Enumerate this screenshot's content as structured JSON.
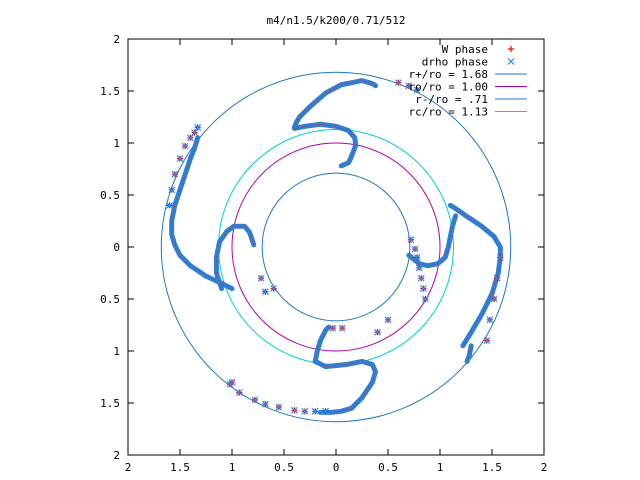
{
  "chart_data": {
    "type": "scatter",
    "title": "m4/n1.5/k200/0.71/512",
    "xlabel": "",
    "ylabel": "",
    "xlim": [
      -2,
      2
    ],
    "ylim": [
      -2,
      2
    ],
    "x_tick_values": [
      -2,
      -1.5,
      -1,
      -0.5,
      0,
      0.5,
      1,
      1.5,
      2
    ],
    "x_tick_labels": [
      "2",
      "1.5",
      "1",
      "0.5",
      "0",
      "0.5",
      "1",
      "1.5",
      "2"
    ],
    "y_tick_values": [
      2,
      1.5,
      1,
      0.5,
      0,
      -0.5,
      -1,
      -1.5,
      -2
    ],
    "y_tick_labels": [
      "2",
      "1.5",
      "1",
      "0.5",
      "0",
      "0.5",
      "1",
      "1.5",
      "2"
    ],
    "grid": false,
    "legend_position": "top-right",
    "series": [
      {
        "name": "W phase",
        "kind": "points",
        "marker": "plus",
        "color": "#ff0000",
        "x": [
          -1.6,
          -1.58,
          -1.55,
          -1.5,
          -1.45,
          -1.4,
          -1.36,
          -1.33,
          -1.02,
          -0.93,
          -0.78,
          -0.68,
          -0.55,
          -0.4,
          -0.3,
          -0.2,
          -0.1,
          0.72,
          0.76,
          0.78,
          0.8,
          0.82,
          0.84,
          0.86,
          0.5,
          0.4,
          0.78,
          0.7,
          0.6,
          -0.72,
          -0.6,
          -0.68,
          -0.03,
          0.06,
          1.58,
          1.55,
          1.52,
          1.48,
          1.45,
          -1.0
        ],
        "y": [
          0.4,
          0.55,
          0.7,
          0.85,
          0.97,
          1.05,
          1.1,
          1.15,
          -1.32,
          -1.4,
          -1.47,
          -1.51,
          -1.54,
          -1.57,
          -1.58,
          -1.58,
          -1.58,
          0.07,
          -0.02,
          -0.1,
          -0.2,
          -0.3,
          -0.4,
          -0.5,
          -0.7,
          -0.82,
          1.51,
          1.55,
          1.58,
          -0.3,
          -0.4,
          -0.43,
          -0.78,
          -0.78,
          -0.1,
          -0.3,
          -0.5,
          -0.7,
          -0.9,
          -1.3
        ]
      },
      {
        "name": "drho phase",
        "kind": "points",
        "marker": "cross",
        "color": "#1e90ff",
        "x": [
          -1.6,
          -1.58,
          -1.55,
          -1.5,
          -1.45,
          -1.4,
          -1.36,
          -1.33,
          -1.02,
          -0.93,
          -0.78,
          -0.68,
          -0.55,
          -0.4,
          -0.3,
          -0.2,
          -0.1,
          0.72,
          0.76,
          0.78,
          0.8,
          0.82,
          0.84,
          0.86,
          0.5,
          0.4,
          0.78,
          0.7,
          0.6,
          -0.72,
          -0.6,
          -0.68,
          -0.03,
          0.06,
          1.58,
          1.55,
          1.52,
          1.48,
          1.45,
          -1.0
        ],
        "y": [
          0.4,
          0.55,
          0.7,
          0.85,
          0.97,
          1.05,
          1.1,
          1.15,
          -1.32,
          -1.4,
          -1.47,
          -1.51,
          -1.54,
          -1.57,
          -1.58,
          -1.58,
          -1.58,
          0.07,
          -0.02,
          -0.1,
          -0.2,
          -0.3,
          -0.4,
          -0.5,
          -0.7,
          -0.82,
          1.51,
          1.55,
          1.58,
          -0.3,
          -0.4,
          -0.43,
          -0.78,
          -0.78,
          -0.1,
          -0.3,
          -0.5,
          -0.7,
          -0.9,
          -1.3
        ]
      },
      {
        "name": "r+/ro = 1.68",
        "kind": "circle",
        "radius": 1.68,
        "color": "#1e78c8"
      },
      {
        "name": "ro/ro = 1.00",
        "kind": "circle",
        "radius": 1.0,
        "color": "#b000b0"
      },
      {
        "name": "r-/ro = .71",
        "kind": "circle",
        "radius": 0.71,
        "color": "#1e78c8"
      },
      {
        "name": "rc/ro = 1.13",
        "kind": "circle",
        "radius": 1.13,
        "color": "#00d0d0"
      }
    ],
    "arms": [
      {
        "color": "#2f7fd6",
        "x": [
          -1.33,
          -1.36,
          -1.4,
          -1.45,
          -1.5,
          -1.55,
          -1.58,
          -1.58,
          -1.55,
          -1.5,
          -1.4,
          -1.25,
          -1.1,
          -1.0
        ],
        "y": [
          1.05,
          0.95,
          0.85,
          0.7,
          0.55,
          0.4,
          0.25,
          0.12,
          0.02,
          -0.08,
          -0.18,
          -0.28,
          -0.35,
          -0.4
        ]
      },
      {
        "color": "#2f7fd6",
        "x": [
          -1.1,
          -1.15,
          -1.15,
          -1.12,
          -1.05,
          -0.98,
          -0.88,
          -0.83,
          -0.81,
          -0.79
        ],
        "y": [
          -0.4,
          -0.25,
          -0.1,
          0.05,
          0.15,
          0.2,
          0.2,
          0.14,
          0.08,
          0.02
        ]
      },
      {
        "color": "#2f7fd6",
        "x": [
          -0.4,
          -0.38,
          -0.35,
          -0.25,
          -0.1,
          0.05,
          0.15,
          0.25,
          0.32,
          0.35,
          0.37,
          0.38
        ],
        "y": [
          1.15,
          1.2,
          1.25,
          1.35,
          1.48,
          1.56,
          1.58,
          1.6,
          1.58,
          1.57,
          1.56,
          1.55
        ]
      },
      {
        "color": "#2f7fd6",
        "x": [
          -0.4,
          -0.3,
          -0.15,
          0.0,
          0.12,
          0.18,
          0.19,
          0.16,
          0.14,
          0.12,
          0.05
        ],
        "y": [
          1.14,
          1.16,
          1.18,
          1.16,
          1.12,
          1.05,
          0.98,
          0.9,
          0.85,
          0.81,
          0.78
        ]
      },
      {
        "color": "#2f7fd6",
        "x": [
          1.1,
          1.15,
          1.25,
          1.4,
          1.52,
          1.58,
          1.58,
          1.56,
          1.5,
          1.4,
          1.3,
          1.22
        ],
        "y": [
          0.4,
          0.37,
          0.3,
          0.2,
          0.1,
          0.0,
          -0.1,
          -0.25,
          -0.45,
          -0.65,
          -0.82,
          -0.95
        ]
      },
      {
        "color": "#2f7fd6",
        "x": [
          1.15,
          1.12,
          1.1,
          1.08,
          1.05,
          0.98,
          0.88,
          0.8,
          0.75,
          0.7
        ],
        "y": [
          0.3,
          0.2,
          0.1,
          0.0,
          -0.1,
          -0.16,
          -0.18,
          -0.16,
          -0.12,
          -0.08
        ]
      },
      {
        "color": "#2f7fd6",
        "x": [
          -0.2,
          -0.1,
          0.1,
          0.25,
          0.35,
          0.38,
          0.35,
          0.25,
          0.15,
          0.05,
          -0.05,
          -0.15
        ],
        "y": [
          -1.1,
          -1.15,
          -1.13,
          -1.1,
          -1.13,
          -1.2,
          -1.3,
          -1.45,
          -1.55,
          -1.58,
          -1.59,
          -1.59
        ]
      },
      {
        "color": "#2f7fd6",
        "x": [
          -0.2,
          -0.18,
          -0.15,
          -0.1,
          -0.07
        ],
        "y": [
          -1.1,
          -1.0,
          -0.9,
          -0.8,
          -0.77
        ]
      },
      {
        "color": "#2f7fd6",
        "x": [
          1.3,
          1.28,
          1.26
        ],
        "y": [
          -0.95,
          -1.05,
          -1.1
        ]
      }
    ]
  }
}
